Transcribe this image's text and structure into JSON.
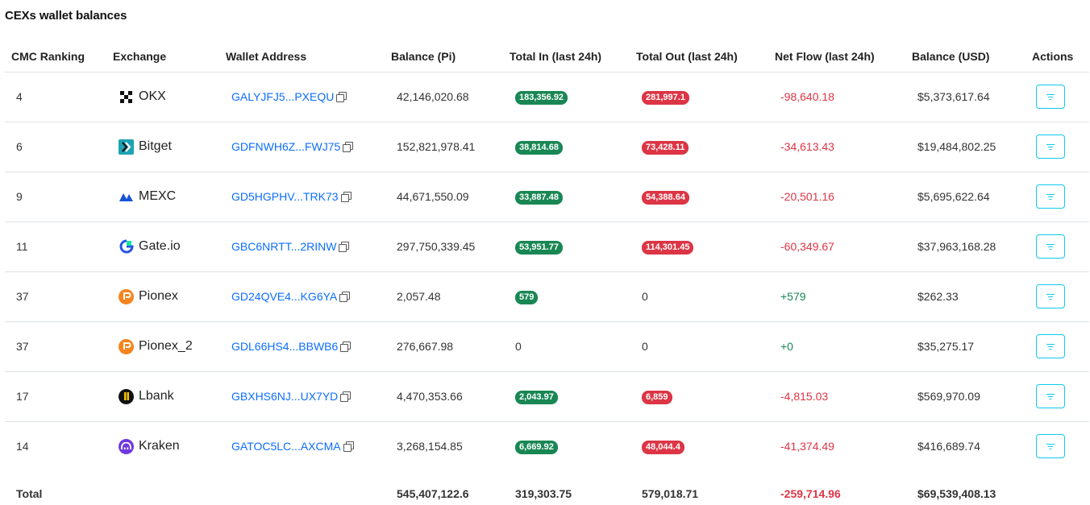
{
  "title": "CEXs wallet balances",
  "columns": {
    "rank": "CMC Ranking",
    "exchange": "Exchange",
    "wallet": "Wallet Address",
    "balance": "Balance (Pi)",
    "total_in": "Total In (last 24h)",
    "total_out": "Total Out (last 24h)",
    "net_flow": "Net Flow (last 24h)",
    "balance_usd": "Balance (USD)",
    "actions": "Actions"
  },
  "rows": [
    {
      "rank": "4",
      "exchange": "OKX",
      "logo": "okx-logo-icon",
      "wallet": "GALYJFJ5...PXEQU",
      "balance": "42,146,020.68",
      "total_in": "183,356.92",
      "total_out": "281,997.1",
      "net_flow": "-98,640.18",
      "balance_usd": "$5,373,617.64"
    },
    {
      "rank": "6",
      "exchange": "Bitget",
      "logo": "bitget-logo-icon",
      "wallet": "GDFNWH6Z...FWJ75",
      "balance": "152,821,978.41",
      "total_in": "38,814.68",
      "total_out": "73,428.11",
      "net_flow": "-34,613.43",
      "balance_usd": "$19,484,802.25"
    },
    {
      "rank": "9",
      "exchange": "MEXC",
      "logo": "mexc-logo-icon",
      "wallet": "GD5HGPHV...TRK73",
      "balance": "44,671,550.09",
      "total_in": "33,887.48",
      "total_out": "54,388.64",
      "net_flow": "-20,501.16",
      "balance_usd": "$5,695,622.64"
    },
    {
      "rank": "11",
      "exchange": "Gate.io",
      "logo": "gateio-logo-icon",
      "wallet": "GBC6NRTT...2RINW",
      "balance": "297,750,339.45",
      "total_in": "53,951.77",
      "total_out": "114,301.45",
      "net_flow": "-60,349.67",
      "balance_usd": "$37,963,168.28"
    },
    {
      "rank": "37",
      "exchange": "Pionex",
      "logo": "pionex-logo-icon",
      "wallet": "GD24QVE4...KG6YA",
      "balance": "2,057.48",
      "total_in": "579",
      "total_out": "0",
      "net_flow": "+579",
      "balance_usd": "$262.33"
    },
    {
      "rank": "37",
      "exchange": "Pionex_2",
      "logo": "pionex-logo-icon",
      "wallet": "GDL66HS4...BBWB6",
      "balance": "276,667.98",
      "total_in": "0",
      "total_out": "0",
      "net_flow": "+0",
      "balance_usd": "$35,275.17"
    },
    {
      "rank": "17",
      "exchange": "Lbank",
      "logo": "lbank-logo-icon",
      "wallet": "GBXHS6NJ...UX7YD",
      "balance": "4,470,353.66",
      "total_in": "2,043.97",
      "total_out": "6,859",
      "net_flow": "-4,815.03",
      "balance_usd": "$569,970.09"
    },
    {
      "rank": "14",
      "exchange": "Kraken",
      "logo": "kraken-logo-icon",
      "wallet": "GATOC5LC...AXCMA",
      "balance": "3,268,154.85",
      "total_in": "6,669.92",
      "total_out": "48,044.4",
      "net_flow": "-41,374.49",
      "balance_usd": "$416,689.74"
    }
  ],
  "totals": {
    "label": "Total",
    "balance": "545,407,122.6",
    "total_in": "319,303.75",
    "total_out": "579,018.71",
    "net_flow": "-259,714.96",
    "balance_usd": "$69,539,408.13"
  },
  "colors": {
    "in_badge": "#198754",
    "out_badge": "#dc3545",
    "link": "#0d6efd",
    "action_border": "#0dcaf0"
  }
}
